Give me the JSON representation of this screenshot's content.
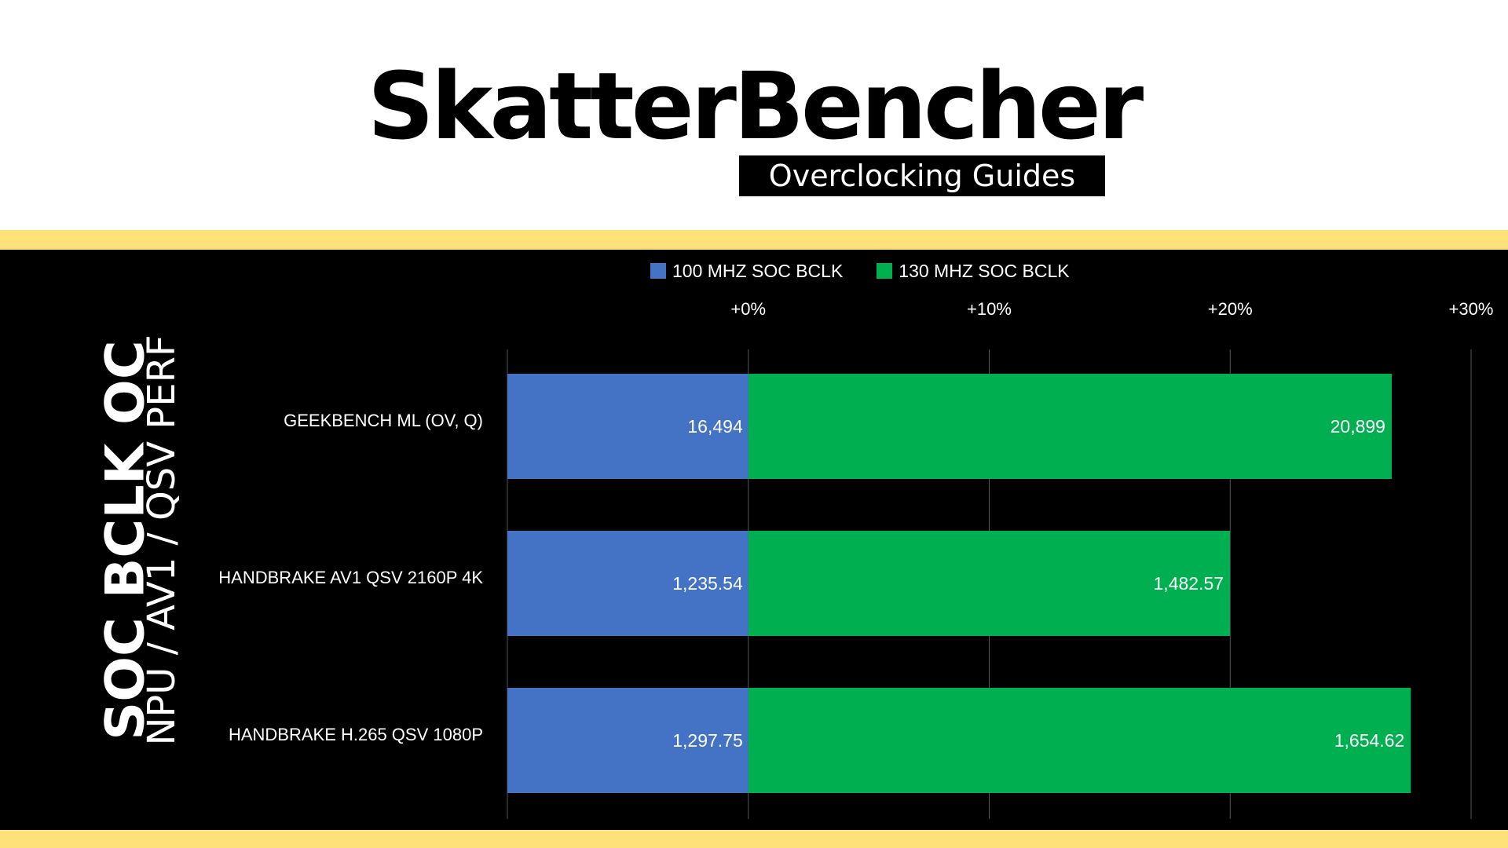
{
  "header": {
    "logo_title": "SkatterBencher",
    "logo_subtitle": "Overclocking Guides"
  },
  "side_title": "SOC BCLK OC",
  "side_subtitle": "NPU / AV1 / QSV PERF",
  "colors": {
    "stripe": "#ffe17a",
    "panel": "#000000",
    "series_baseline": "#4472c4",
    "series_oc": "#00b050",
    "text": "#ffffff"
  },
  "chart_data": {
    "type": "bar",
    "orientation": "horizontal",
    "x_axis": {
      "min_percent": -10,
      "max_percent": 30,
      "tick_percents": [
        0,
        10,
        20,
        30
      ],
      "tick_labels": [
        "+0%",
        "+10%",
        "+20%",
        "+30%"
      ],
      "position": "top"
    },
    "grid": true,
    "legend_position": "top",
    "categories": [
      "GEEKBENCH ML (OV, Q)",
      "HANDBRAKE AV1 QSV 2160P 4K",
      "HANDBRAKE H.265 QSV 1080P"
    ],
    "series": [
      {
        "name": "100 MHZ SOC BCLK",
        "color": "#4472c4",
        "values": [
          16494,
          1235.54,
          1297.75
        ],
        "value_labels": [
          "16,494",
          "1,235.54",
          "1,297.75"
        ]
      },
      {
        "name": "130 MHZ SOC BCLK",
        "color": "#00b050",
        "values": [
          20899,
          1482.57,
          1654.62
        ],
        "value_labels": [
          "20,899",
          "1,482.57",
          "1,654.62"
        ]
      }
    ]
  }
}
